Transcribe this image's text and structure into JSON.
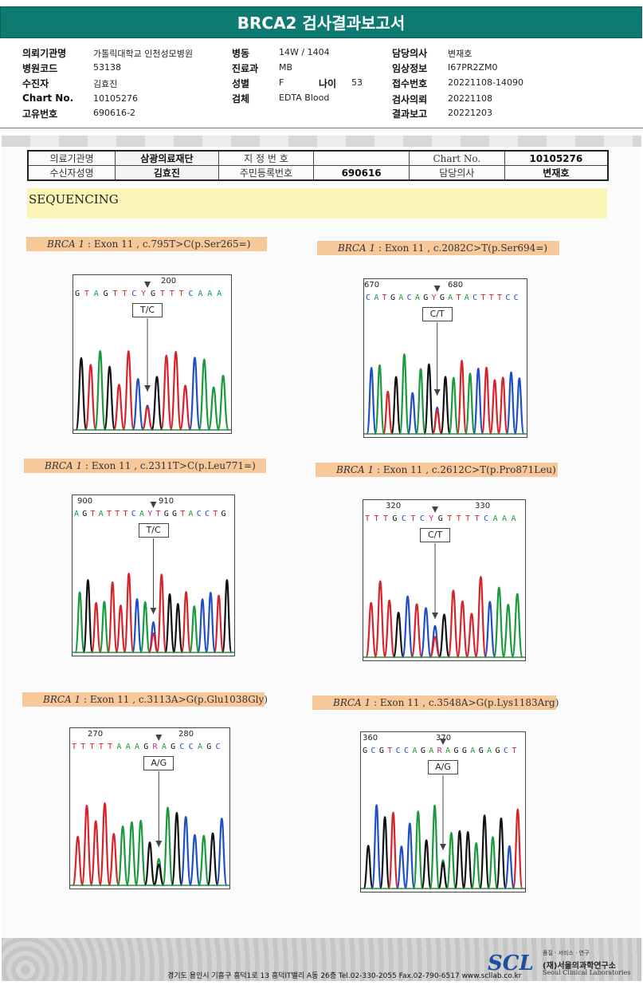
{
  "report": {
    "title": "BRCA2 검사결과보고서",
    "fields": [
      {
        "label": "의뢰기관명",
        "value": "가톨릭대학교 인천성모병원"
      },
      {
        "label": "병원코드",
        "value": "53138"
      },
      {
        "label": "수진자",
        "value": "김효진"
      },
      {
        "label": "Chart No.",
        "value": "10105276"
      },
      {
        "label": "고유번호",
        "value": "690616-2"
      },
      {
        "label": "병동",
        "value": "14W / 1404"
      },
      {
        "label": "진료과",
        "value": "MB"
      },
      {
        "label": "성별",
        "value": "F"
      },
      {
        "label": "나이",
        "value": "53"
      },
      {
        "label": "검체",
        "value": "EDTA Blood"
      },
      {
        "label": "담당의사",
        "value": "변재호"
      },
      {
        "label": "임상정보",
        "value": "I67PR2ZM0"
      },
      {
        "label": "접수번호",
        "value": "20221108-14090"
      },
      {
        "label": "검사의뢰",
        "value": "20221108"
      },
      {
        "label": "결과보고",
        "value": "20221203"
      }
    ]
  },
  "scan_table": {
    "row1": [
      "의료기관명",
      "삼광의료재단",
      "지 정 번 호",
      "",
      "Chart No.",
      "10105276"
    ],
    "row2": [
      "수신자성명",
      "김효진",
      "주민등록번호",
      "690616",
      "담당의사",
      "변재호"
    ]
  },
  "section_title": "SEQUENCING",
  "panels": [
    {
      "gene": "BRCA 1",
      "rest": " : Exon 11 , c.795T>C(p.Ser265=)",
      "pos": [
        "200"
      ],
      "seq": "GTAGTTCYGTTTCAAA",
      "call": "T/C"
    },
    {
      "gene": "BRCA 1",
      "rest": " : Exon 11 , c.2082C>T(p.Ser694=)",
      "pos": [
        "670",
        "680"
      ],
      "seq": "CATGACAGYGATACTTTCC",
      "call": "C/T"
    },
    {
      "gene": "BRCA 1",
      "rest": " : Exon 11 , c.2311T>C(p.Leu771=)",
      "pos": [
        "900",
        "910"
      ],
      "seq": "AGTATTTCAYTGGTACCTG",
      "call": "T/C"
    },
    {
      "gene": "BRCA 1",
      "rest": " : Exon 11 , c.2612C>T(p.Pro871Leu)",
      "pos": [
        "320",
        "330"
      ],
      "seq": "TTTGCTCYGTTTTCAAA",
      "call": "C/T"
    },
    {
      "gene": "BRCA 1",
      "rest": " : Exon 11 , c.3113A>G(p.Glu1038Gly)",
      "pos": [
        "270",
        "280"
      ],
      "seq": "TTTTTAAAGRAGCCAGC",
      "call": "A/G"
    },
    {
      "gene": "BRCA 1",
      "rest": " : Exon 11 , c.3548A>G(p.Lys1183Arg)",
      "pos": [
        "360",
        "370"
      ],
      "seq": "GCGTCCAGARAGGAGAGCT",
      "call": "A/G"
    }
  ],
  "base_colors": {
    "A": "#1a9a3c",
    "C": "#1f4fc4",
    "G": "#111111",
    "T": "#d8232a",
    "N": "#c02a8a"
  },
  "footer": {
    "address": "경기도 용인시 기흥구 흥덕1로 13 흥덕IT밸리 A동 26층  Tel.02-330-2055  Fax.02-790-6517  www.scllab.co.kr",
    "logo": "SCL",
    "slogan": "품질 · 서비스 · 연구",
    "org_ko": "(재)서울의과학연구소",
    "org_en": "Seoul Clinical Laboratories"
  }
}
